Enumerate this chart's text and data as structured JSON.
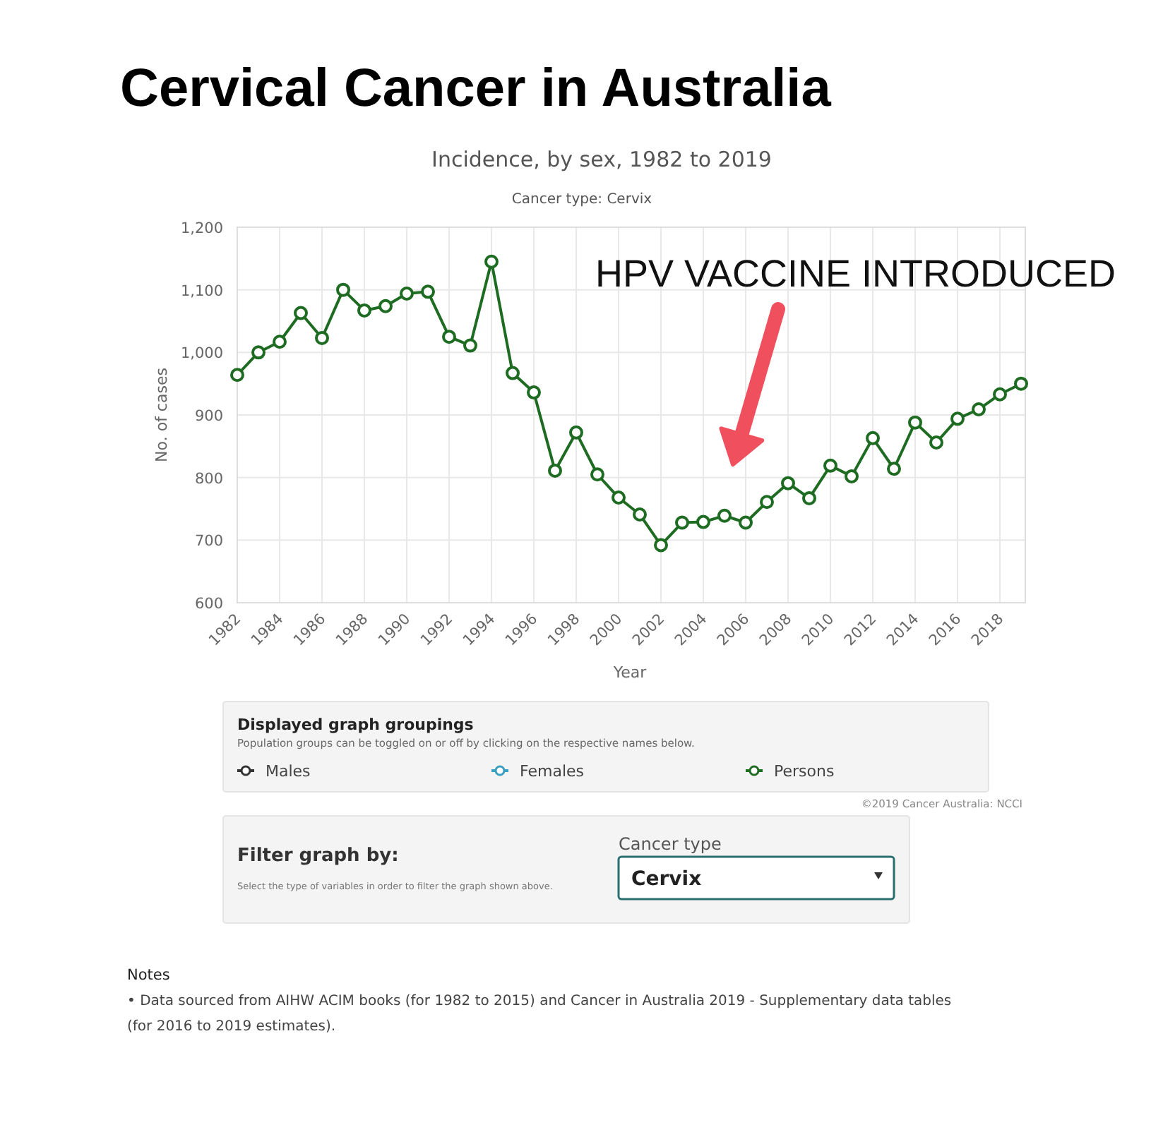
{
  "chart_data": {
    "type": "line",
    "title": "Cervical Cancer in Australia",
    "subtitle": "Incidence, by sex, 1982 to 2019",
    "xlabel": "Year",
    "ylabel": "No. of cases",
    "legend_title": "Displayed graph groupings",
    "x": [
      1982,
      1983,
      1984,
      1985,
      1986,
      1987,
      1988,
      1989,
      1990,
      1991,
      1992,
      1993,
      1994,
      1995,
      1996,
      1997,
      1998,
      1999,
      2000,
      2001,
      2002,
      2003,
      2004,
      2005,
      2006,
      2007,
      2008,
      2009,
      2010,
      2011,
      2012,
      2013,
      2014,
      2015,
      2016,
      2017,
      2018,
      2019
    ],
    "series": [
      {
        "name": "Males",
        "color": "#333333",
        "values": [
          null,
          null,
          null,
          null,
          null,
          null,
          null,
          null,
          null,
          null,
          null,
          null,
          null,
          null,
          null,
          null,
          null,
          null,
          null,
          null,
          null,
          null,
          null,
          null,
          null,
          null,
          null,
          null,
          null,
          null,
          null,
          null,
          null,
          null,
          null,
          null,
          null,
          null
        ]
      },
      {
        "name": "Females",
        "color": "#3a9fc0",
        "values": [
          null,
          null,
          null,
          null,
          null,
          null,
          null,
          null,
          null,
          null,
          null,
          null,
          null,
          null,
          null,
          null,
          null,
          null,
          null,
          null,
          null,
          null,
          null,
          null,
          null,
          null,
          null,
          null,
          null,
          null,
          null,
          null,
          null,
          null,
          null,
          null,
          null,
          null
        ]
      },
      {
        "name": "Persons",
        "color": "#1e6b22",
        "values": [
          964,
          1000,
          1017,
          1063,
          1023,
          1100,
          1067,
          1074,
          1094,
          1097,
          1025,
          1011,
          1145,
          967,
          936,
          811,
          872,
          805,
          768,
          741,
          692,
          728,
          729,
          739,
          728,
          761,
          791,
          767,
          819,
          802,
          863,
          814,
          888,
          856,
          894,
          909,
          933,
          950
        ]
      }
    ],
    "xlim": [
      1982,
      2019
    ],
    "xticks": [
      1982,
      1984,
      1986,
      1988,
      1990,
      1992,
      1994,
      1996,
      1998,
      2000,
      2002,
      2004,
      2006,
      2008,
      2010,
      2012,
      2014,
      2016,
      2018
    ],
    "ylim": [
      600,
      1200
    ],
    "yticks": [
      {
        "value": 600,
        "label": "600"
      },
      {
        "value": 700,
        "label": "700"
      },
      {
        "value": 800,
        "label": "800"
      },
      {
        "value": 900,
        "label": "900"
      },
      {
        "value": 1000,
        "label": "1,000"
      },
      {
        "value": 1100,
        "label": "1,100"
      },
      {
        "value": 1200,
        "label": "1,200"
      }
    ],
    "grid": true,
    "marker": "circle",
    "line_style": "solid",
    "legend": "bottom",
    "annotations": [
      "HPV VACCINE INTRODUCED",
      "Cancer type: Cervix",
      "Population groups can be toggled on or off by clicking on the respective names below.",
      "©2019 Cancer Australia: NCCI",
      "Filter graph by:",
      "Select the type of variables in order to filter the graph shown above.",
      "Cancer type",
      "Cervix",
      "Notes",
      "• Data sourced from AIHW ACIM books (for 1982 to 2015) and Cancer in Australia 2019 - Supplementary data tables (for 2016 to 2019 estimates)."
    ]
  }
}
